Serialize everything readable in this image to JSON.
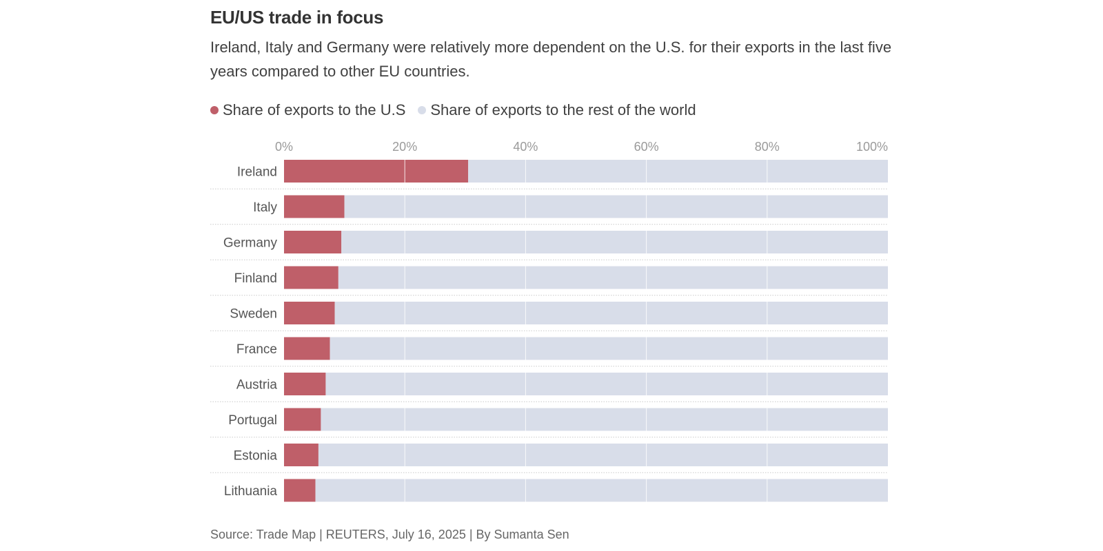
{
  "header": {
    "title": "EU/US trade in focus",
    "subtitle": "Ireland, Italy and Germany were relatively more dependent on the U.S. for their exports in the last five years compared to other EU countries."
  },
  "legend": {
    "items": [
      {
        "label": "Share of exports to the U.S",
        "color": "#bf5f69"
      },
      {
        "label": "Share of exports to the rest of the world",
        "color": "#d8dde9"
      }
    ]
  },
  "chart_data": {
    "type": "bar",
    "orientation": "horizontal",
    "stacked": true,
    "title": "EU/US trade in focus",
    "xlabel": "",
    "ylabel": "",
    "xlim": [
      0,
      100
    ],
    "ticks": [
      0,
      20,
      40,
      60,
      80,
      100
    ],
    "tick_labels": [
      "0%",
      "20%",
      "40%",
      "60%",
      "80%",
      "100%"
    ],
    "categories": [
      "Ireland",
      "Italy",
      "Germany",
      "Finland",
      "Sweden",
      "France",
      "Austria",
      "Portugal",
      "Estonia",
      "Lithuania"
    ],
    "series": [
      {
        "name": "Share of exports to the U.S",
        "color": "#bf5f69",
        "values": [
          30.5,
          10,
          9.5,
          9,
          8.4,
          7.6,
          6.9,
          6.1,
          5.7,
          5.2
        ]
      },
      {
        "name": "Share of exports to the rest of the world",
        "color": "#d8dde9",
        "values": [
          69.5,
          90,
          90.5,
          91,
          91.6,
          92.4,
          93.1,
          93.9,
          94.3,
          94.8
        ]
      }
    ],
    "grid": true,
    "legend_position": "top-left"
  },
  "footer": {
    "source": "Source: Trade Map | REUTERS, July 16, 2025 | By Sumanta Sen"
  }
}
